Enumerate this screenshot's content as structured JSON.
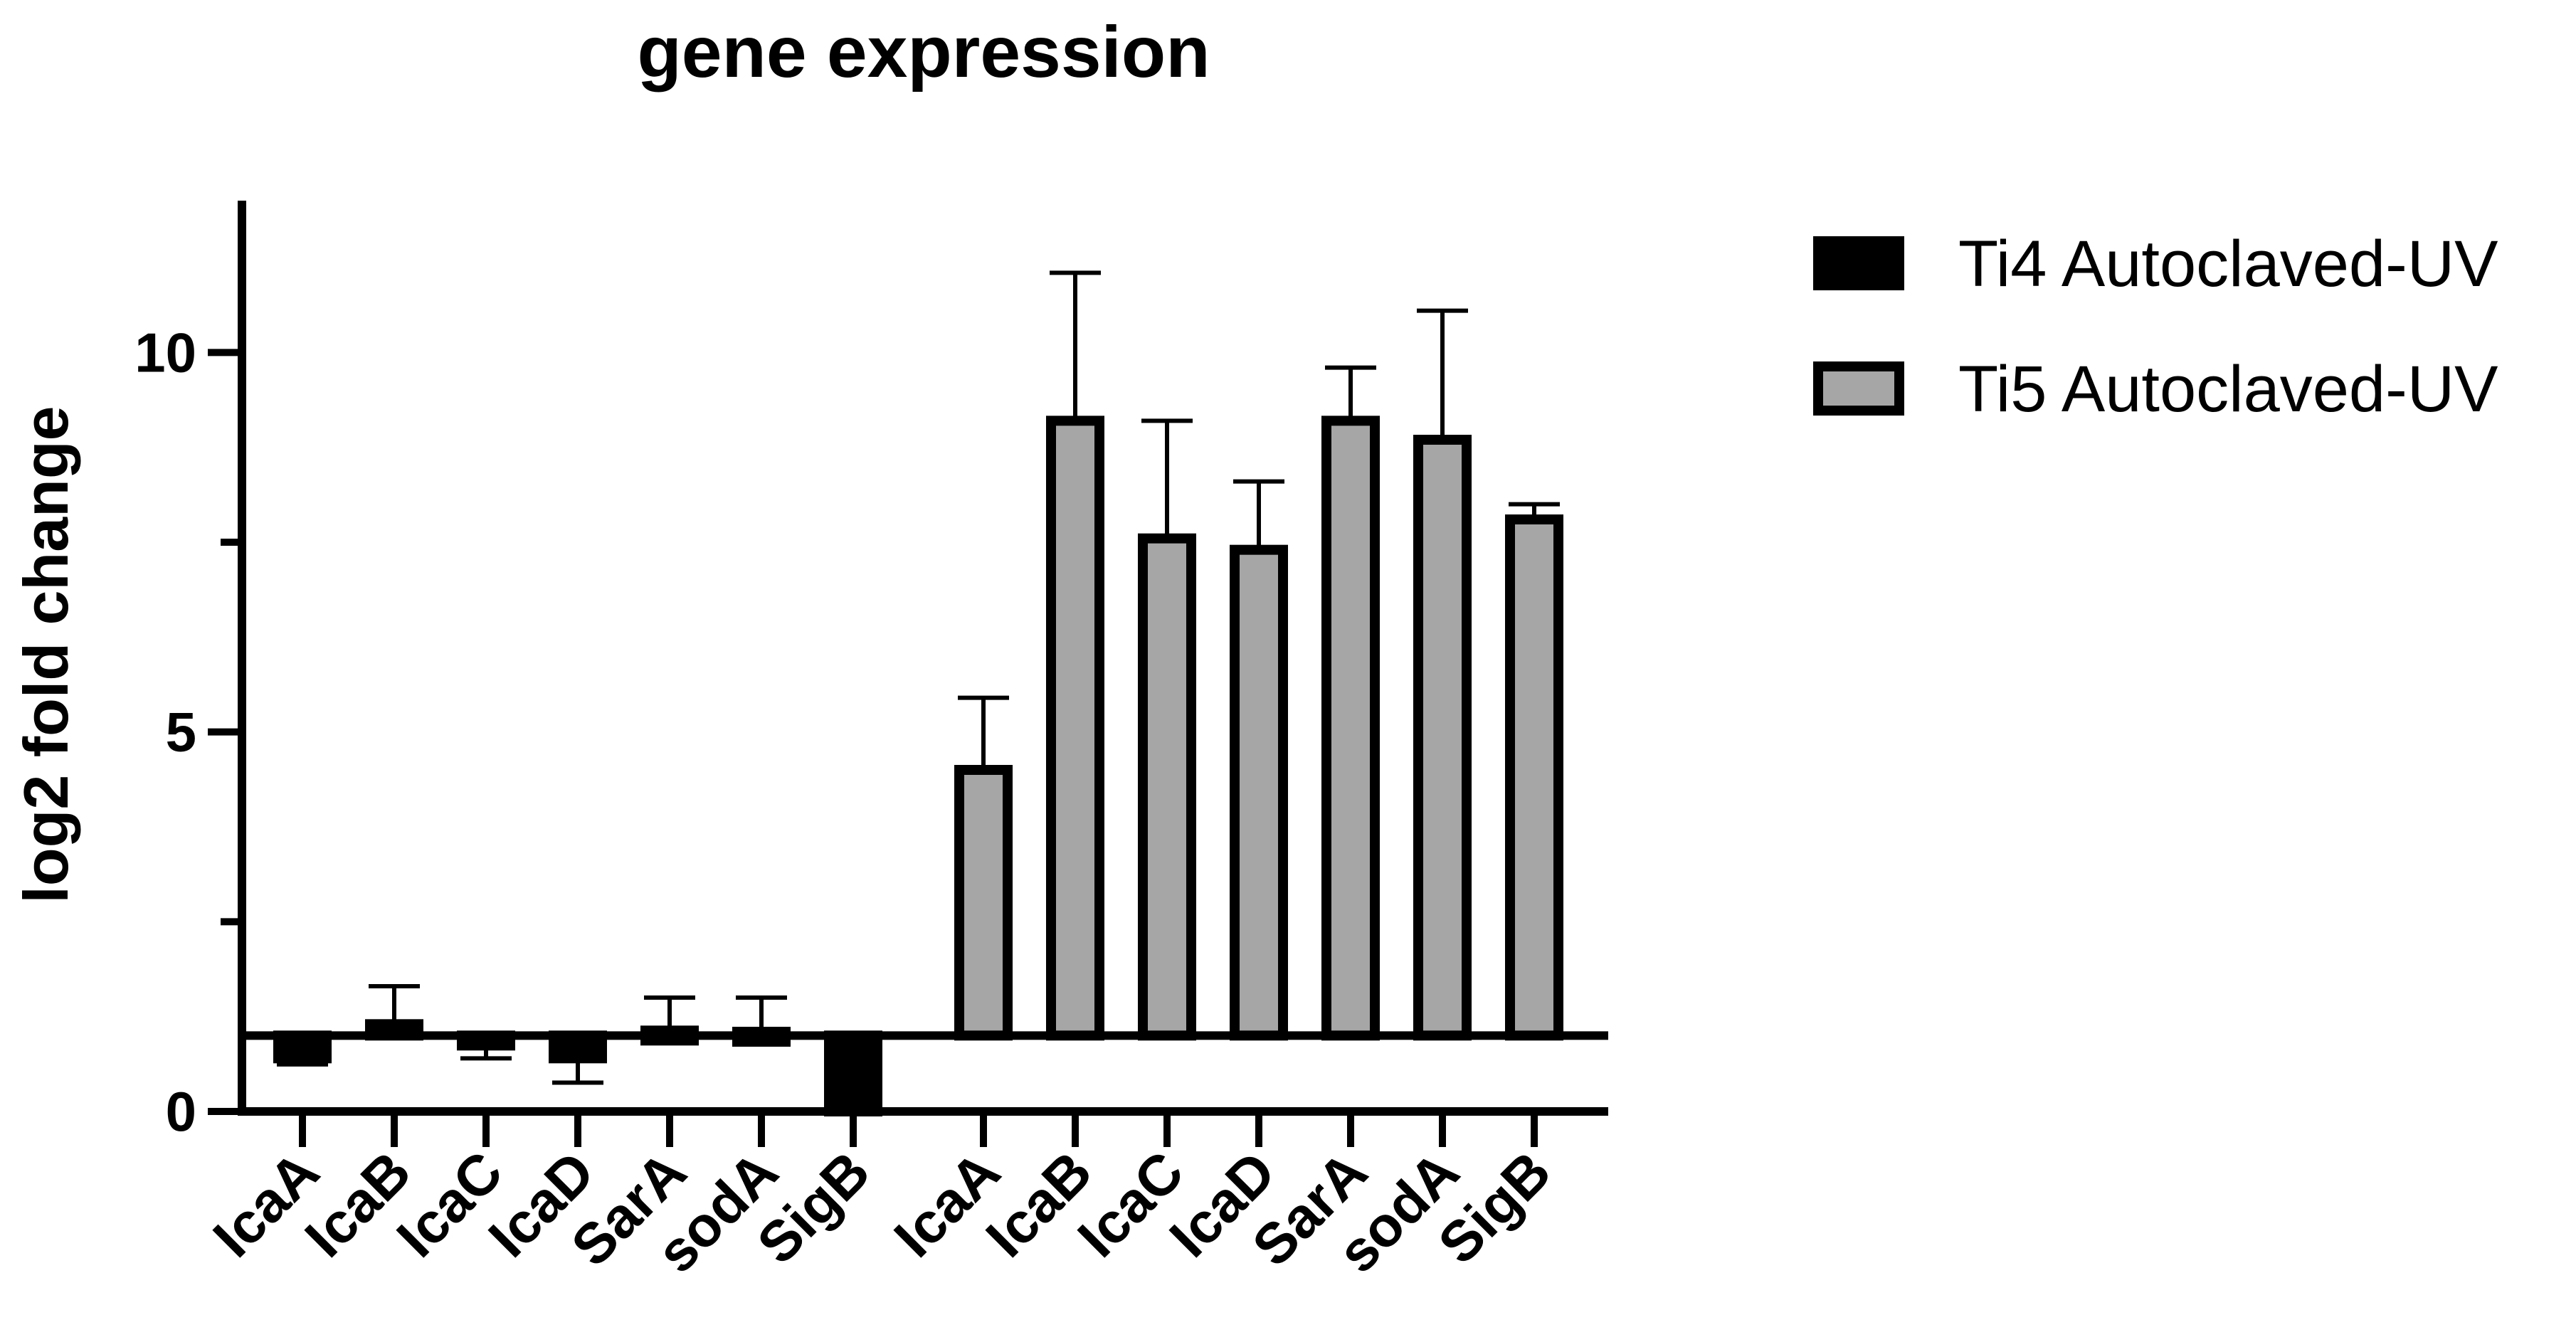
{
  "chart_data": {
    "type": "bar",
    "title": "gene expression",
    "xlabel": "",
    "ylabel": "log2 fold change",
    "ylim": [
      0,
      12
    ],
    "yticks": [
      0,
      5,
      10
    ],
    "baseline": 1,
    "grid": false,
    "legend_position": "top-right",
    "series": [
      {
        "name": "Ti4 Autoclaved-UV",
        "color": "#000000",
        "categories": [
          "IcaA",
          "IcaB",
          "IcaC",
          "IcaD",
          "SarA",
          "sodA",
          "SigB"
        ],
        "values": [
          0.7,
          1.15,
          0.9,
          0.7,
          1.0,
          1.05,
          0
        ],
        "error_bars": [
          0.08,
          0.5,
          0.2,
          0.32,
          0.5,
          0.45,
          0
        ]
      },
      {
        "name": "Ti5 Autoclaved-UV",
        "color": "#a6a6a6",
        "categories": [
          "IcaA",
          "IcaB",
          "IcaC",
          "IcaD",
          "SarA",
          "sodA",
          "SigB"
        ],
        "values": [
          4.5,
          9.1,
          7.55,
          7.4,
          9.1,
          8.85,
          7.8
        ],
        "error_bars": [
          0.95,
          1.95,
          1.55,
          0.9,
          0.7,
          1.7,
          0.2
        ]
      }
    ]
  }
}
